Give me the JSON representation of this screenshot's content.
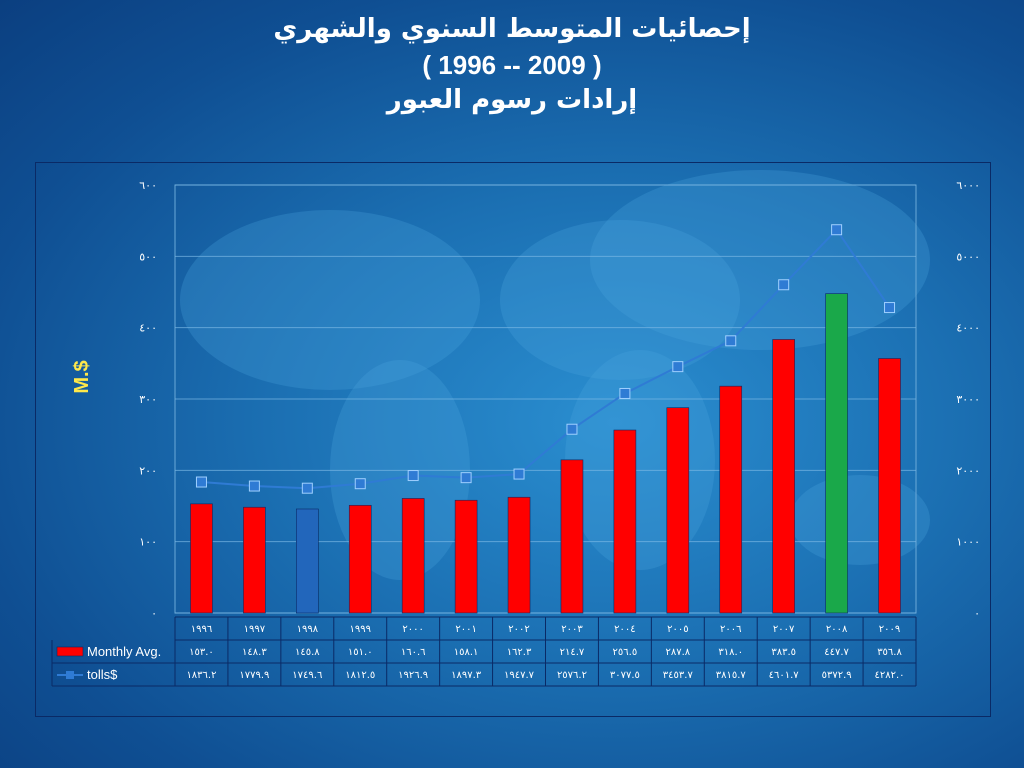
{
  "chart_data": {
    "type": "bar",
    "title": "إحصائيات المتوسط السنوي والشهري",
    "subtitle": "( 1996 -- 2009 )",
    "subtitle2": "إرادات رسوم العبور",
    "ylabel": "M.$",
    "ylim": [
      0,
      600
    ],
    "y2lim": [
      0,
      6000
    ],
    "yticks": [
      "٠",
      "١٠٠",
      "٢٠٠",
      "٣٠٠",
      "٤٠٠",
      "٥٠٠",
      "٦٠٠"
    ],
    "y2ticks": [
      "٠",
      "١٠٠٠",
      "٢٠٠٠",
      "٣٠٠٠",
      "٤٠٠٠",
      "٥٠٠٠",
      "٦٠٠٠"
    ],
    "grid": true,
    "categories": [
      "١٩٩٦",
      "١٩٩٧",
      "١٩٩٨",
      "١٩٩٩",
      "٢٠٠٠",
      "٢٠٠١",
      "٢٠٠٢",
      "٢٠٠٣",
      "٢٠٠٤",
      "٢٠٠٥",
      "٢٠٠٦",
      "٢٠٠٧",
      "٢٠٠٨",
      "٢٠٠٩"
    ],
    "series": [
      {
        "name": "Monthly Avg.",
        "type": "bar",
        "axis": "left",
        "values": [
          153.0,
          148.3,
          145.8,
          151.0,
          160.6,
          158.1,
          162.3,
          214.7,
          256.5,
          287.8,
          318.0,
          383.5,
          447.7,
          356.8
        ],
        "labels": [
          "١٥٣.٠",
          "١٤٨.٣",
          "١٤٥.٨",
          "١٥١.٠",
          "١٦٠.٦",
          "١٥٨.١",
          "١٦٢.٣",
          "٢١٤.٧",
          "٢٥٦.٥",
          "٢٨٧.٨",
          "٣١٨.٠",
          "٣٨٣.٥",
          "٤٤٧.٧",
          "٣٥٦.٨"
        ],
        "colors": [
          "#ff0000",
          "#ff0000",
          "#2266bb",
          "#ff0000",
          "#ff0000",
          "#ff0000",
          "#ff0000",
          "#ff0000",
          "#ff0000",
          "#ff0000",
          "#ff0000",
          "#ff0000",
          "#1aa84a",
          "#ff0000"
        ]
      },
      {
        "name": "tolls$",
        "type": "line",
        "axis": "right",
        "color": "#2f7bd4",
        "values": [
          1836.2,
          1779.9,
          1749.6,
          1812.5,
          1926.9,
          1897.3,
          1947.7,
          2576.2,
          3077.5,
          3453.7,
          3815.7,
          4601.7,
          5372.9,
          4282.0
        ],
        "labels": [
          "١٨٣٦.٢",
          "١٧٧٩.٩",
          "١٧٤٩.٦",
          "١٨١٢.٥",
          "١٩٢٦.٩",
          "١٨٩٧.٣",
          "١٩٤٧.٧",
          "٢٥٧٦.٢",
          "٣٠٧٧.٥",
          "٣٤٥٣.٧",
          "٣٨١٥.٧",
          "٤٦٠١.٧",
          "٥٣٧٢.٩",
          "٤٢٨٢.٠"
        ]
      }
    ]
  }
}
